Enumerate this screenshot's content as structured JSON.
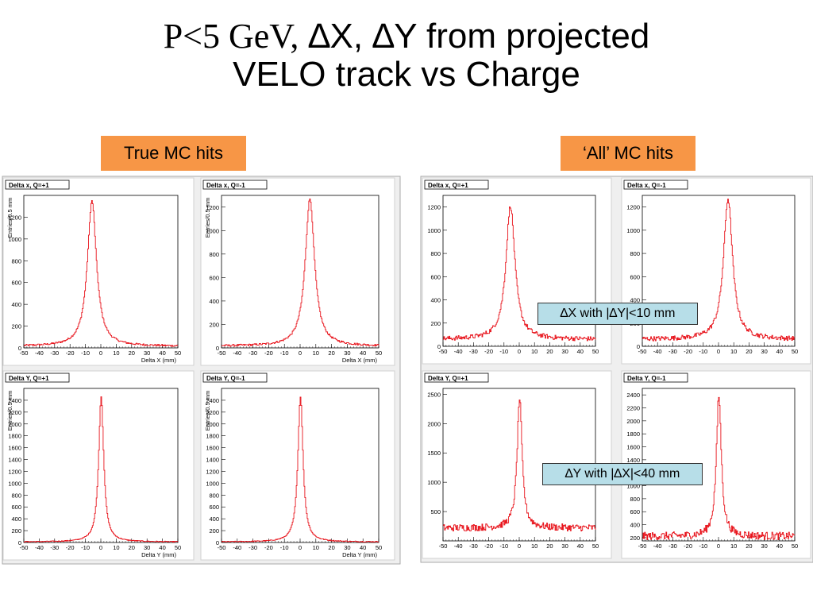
{
  "title": {
    "part_serif": "P<5 GeV,",
    "part_sans": " ∆X, ∆Y from projected",
    "line2": "VELO track vs Charge"
  },
  "labels": {
    "true_mc": "True MC hits",
    "all_mc": "‘All’ MC hits",
    "dx_note": "∆X with |∆Y|<10 mm",
    "dy_note": "∆Y with |∆X|<40 mm"
  },
  "colors": {
    "curve": "#e8141c",
    "frame": "#c8c8c8",
    "tag": "#f79646",
    "note": "#b7dee8"
  },
  "chart_data": [
    {
      "id": "tl1",
      "group": "True MC hits",
      "type": "line",
      "title": "Delta x, Q=+1",
      "xlabel": "Delta X (mm)",
      "ylabel": "Entries/0.5 mm",
      "xlim": [
        -50,
        50
      ],
      "ylim": [
        0,
        1400
      ],
      "yticks": [
        0,
        200,
        400,
        600,
        800,
        1000,
        1200
      ],
      "peak_x": -6,
      "peak_y": 1350,
      "width": 4.5,
      "base": 15
    },
    {
      "id": "tr1",
      "group": "True MC hits",
      "type": "line",
      "title": "Delta x, Q=-1",
      "xlabel": "Delta X (mm)",
      "ylabel": "Entries/0.5 mm",
      "xlim": [
        -50,
        50
      ],
      "ylim": [
        0,
        1300
      ],
      "yticks": [
        0,
        200,
        400,
        600,
        800,
        1000,
        1200
      ],
      "peak_x": 6,
      "peak_y": 1270,
      "width": 4.5,
      "base": 15
    },
    {
      "id": "tl2",
      "group": "True MC hits",
      "type": "line",
      "title": "Delta Y, Q=+1",
      "xlabel": "Delta Y (mm)",
      "ylabel": "Entries/0.5 mm",
      "xlim": [
        -50,
        50
      ],
      "ylim": [
        0,
        2600
      ],
      "yticks": [
        0,
        200,
        400,
        600,
        800,
        1000,
        1200,
        1400,
        1600,
        1800,
        2000,
        2200,
        2400
      ],
      "peak_x": 0,
      "peak_y": 2460,
      "width": 2.5,
      "base": 10
    },
    {
      "id": "tr2",
      "group": "True MC hits",
      "type": "line",
      "title": "Delta Y, Q=-1",
      "xlabel": "Delta Y (mm)",
      "ylabel": "Entries/0.5 mm",
      "xlim": [
        -50,
        50
      ],
      "ylim": [
        0,
        2600
      ],
      "yticks": [
        0,
        200,
        400,
        600,
        800,
        1000,
        1200,
        1400,
        1600,
        1800,
        2000,
        2200,
        2400
      ],
      "peak_x": 0,
      "peak_y": 2460,
      "width": 2.5,
      "base": 10
    },
    {
      "id": "al1",
      "group": "‘All’ MC hits",
      "type": "line",
      "title": "Delta x, Q=+1",
      "xlabel": "",
      "ylabel": "",
      "xlim": [
        -50,
        50
      ],
      "ylim": [
        0,
        1300
      ],
      "yticks": [
        0,
        200,
        400,
        600,
        800,
        1000,
        1200
      ],
      "peak_x": -6,
      "peak_y": 1210,
      "width": 4.5,
      "base": 60
    },
    {
      "id": "ar1",
      "group": "‘All’ MC hits",
      "type": "line",
      "title": "Delta x, Q=-1",
      "xlabel": "",
      "ylabel": "",
      "xlim": [
        -50,
        50
      ],
      "ylim": [
        0,
        1300
      ],
      "yticks": [
        0,
        200,
        400,
        600,
        800,
        1000,
        1200
      ],
      "peak_x": 6,
      "peak_y": 1270,
      "width": 4.5,
      "base": 60
    },
    {
      "id": "al2",
      "group": "‘All’ MC hits",
      "type": "line",
      "title": "Delta Y, Q=+1",
      "xlabel": "",
      "ylabel": "",
      "xlim": [
        -50,
        50
      ],
      "ylim": [
        0,
        2600
      ],
      "yticks": [
        500,
        1000,
        1500,
        2000,
        2500
      ],
      "peak_x": 0,
      "peak_y": 2430,
      "width": 2.5,
      "base": 220
    },
    {
      "id": "ar2",
      "group": "‘All’ MC hits",
      "type": "line",
      "title": "Delta Y, Q=-1",
      "xlabel": "",
      "ylabel": "",
      "xlim": [
        -50,
        50
      ],
      "ylim": [
        150,
        2500
      ],
      "yticks": [
        200,
        400,
        600,
        800,
        1000,
        1200,
        1400,
        1600,
        1800,
        2000,
        2200,
        2400
      ],
      "peak_x": 0,
      "peak_y": 2380,
      "width": 2.5,
      "base": 220
    }
  ],
  "xticks": [
    -50,
    -40,
    -30,
    -20,
    -10,
    0,
    10,
    20,
    30,
    40,
    50
  ]
}
